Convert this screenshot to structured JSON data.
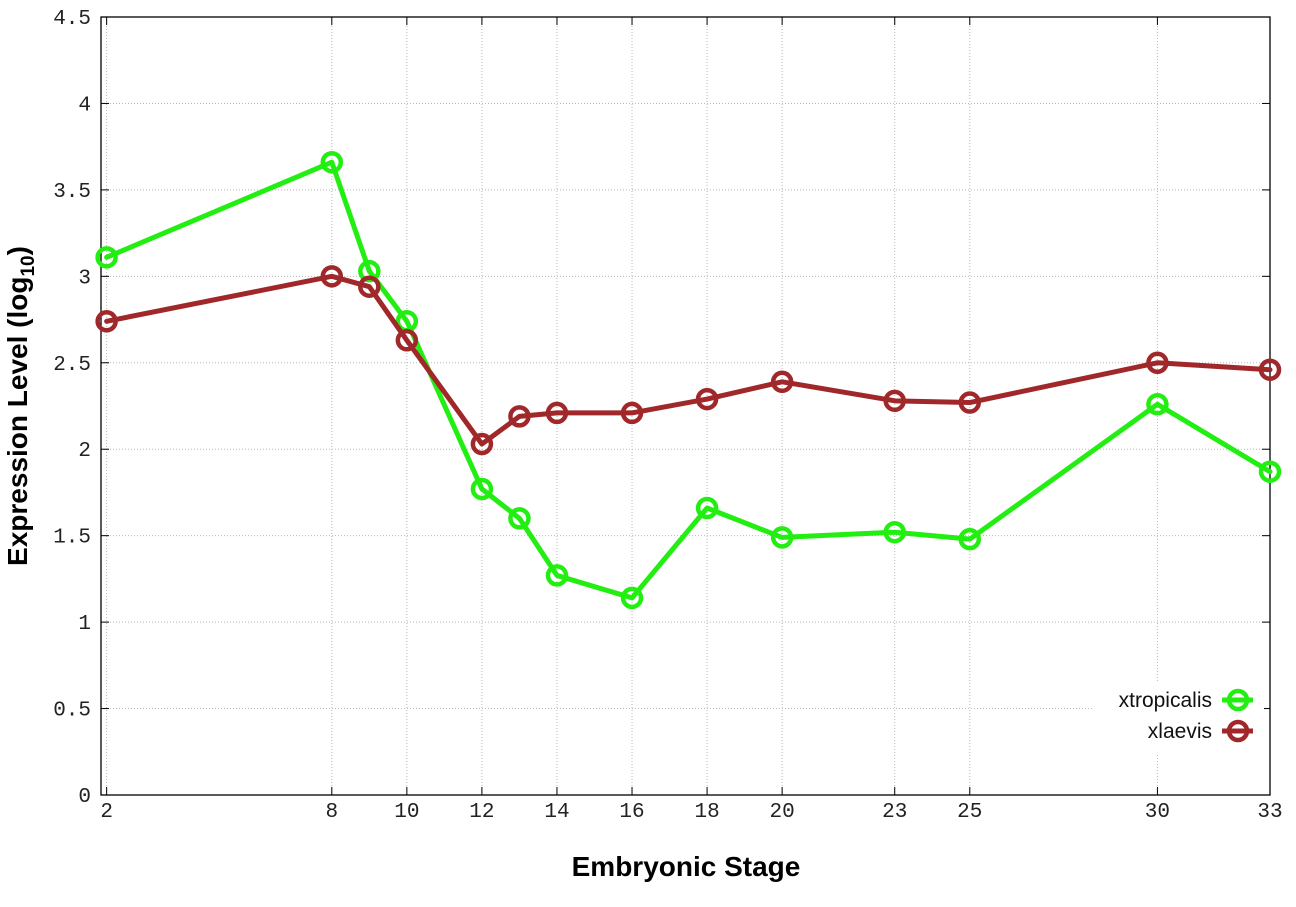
{
  "chart_data": {
    "type": "line",
    "title": "",
    "xlabel": "Embryonic Stage",
    "ylabel_main": "Expression Level (log",
    "ylabel_sub": "10",
    "ylabel_close": ")",
    "x": [
      2,
      8,
      9,
      10,
      12,
      13,
      14,
      16,
      18,
      20,
      23,
      25,
      30,
      33
    ],
    "x_tick_values": [
      2,
      8,
      10,
      12,
      14,
      16,
      18,
      20,
      23,
      25,
      30,
      33
    ],
    "x_tick_labels": [
      "2",
      "8",
      "10",
      "12",
      "14",
      "16",
      "18",
      "20",
      "23",
      "25",
      "30",
      "33"
    ],
    "y_tick_values": [
      0,
      0.5,
      1,
      1.5,
      2,
      2.5,
      3,
      3.5,
      4,
      4.5
    ],
    "y_tick_labels": [
      "0",
      "0.5",
      "1",
      "1.5",
      "2",
      "2.5",
      "3",
      "3.5",
      "4",
      "4.5"
    ],
    "xlim": [
      1.85,
      33
    ],
    "ylim": [
      0,
      4.5
    ],
    "grid": true,
    "legend_position": "bottom-right",
    "series": [
      {
        "name": "xtropicalis",
        "color": "#22ee11",
        "marker": "open-circle",
        "values": [
          3.11,
          3.66,
          3.03,
          2.74,
          1.77,
          1.6,
          1.27,
          1.14,
          1.66,
          1.49,
          1.52,
          1.48,
          2.26,
          1.87
        ]
      },
      {
        "name": "xlaevis",
        "color": "#a0282a",
        "marker": "open-circle",
        "values": [
          2.74,
          3.0,
          2.94,
          2.63,
          2.03,
          2.19,
          2.21,
          2.21,
          2.29,
          2.39,
          2.28,
          2.27,
          2.5,
          2.46
        ]
      }
    ]
  }
}
